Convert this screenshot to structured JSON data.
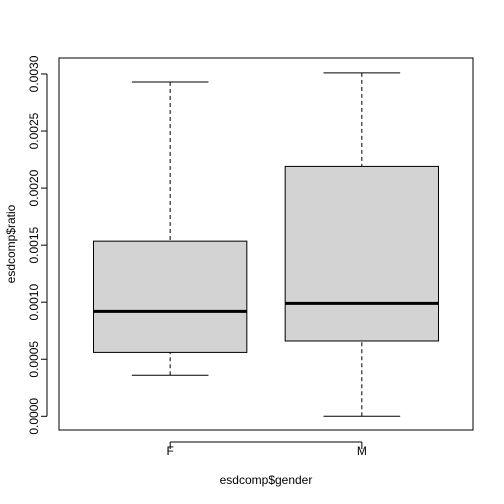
{
  "chart_data": {
    "type": "box",
    "x_label": "esdcomp$gender",
    "y_label": "esdcomp$ratio",
    "categories": [
      "F",
      "M"
    ],
    "boxes": [
      {
        "whisker_low": 0.00036,
        "q1": 0.00056,
        "median": 0.00092,
        "q3": 0.001535,
        "whisker_high": 0.00293
      },
      {
        "whisker_low": 0.0,
        "q1": 0.00066,
        "median": 0.00099,
        "q3": 0.00219,
        "whisker_high": 0.00301
      }
    ],
    "color": "#d3d3d3",
    "ylim": [
      -0.00012,
      0.00314
    ],
    "yticks": [
      {
        "value": 0,
        "label": "0.0000"
      },
      {
        "value": 0.0005,
        "label": "0.0005"
      },
      {
        "value": 0.001,
        "label": "0.0010"
      },
      {
        "value": 0.0015,
        "label": "0.0015"
      },
      {
        "value": 0.002,
        "label": "0.0020"
      },
      {
        "value": 0.0025,
        "label": "0.0025"
      },
      {
        "value": 0.003,
        "label": "0.0030"
      }
    ]
  }
}
